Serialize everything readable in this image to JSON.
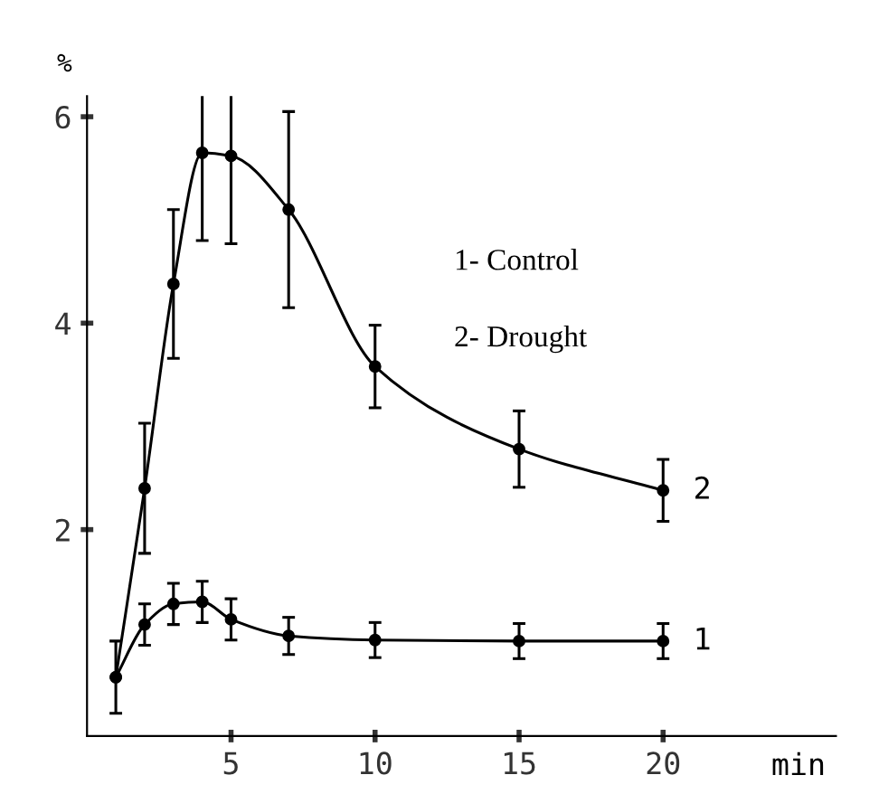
{
  "chart_data": {
    "type": "line",
    "xlabel": "min",
    "ylabel": "%",
    "x": [
      1,
      2,
      3,
      4,
      5,
      7,
      10,
      15,
      20
    ],
    "series": [
      {
        "name": "1",
        "color": "#000000",
        "values": [
          0.57,
          1.08,
          1.28,
          1.3,
          1.13,
          0.97,
          0.93,
          0.92,
          0.92
        ],
        "errors": [
          0.35,
          0.2,
          0.2,
          0.2,
          0.2,
          0.18,
          0.17,
          0.17,
          0.17
        ]
      },
      {
        "name": "2",
        "color": "#000000",
        "values": [
          0.57,
          2.4,
          4.38,
          5.65,
          5.62,
          5.1,
          3.58,
          2.78,
          2.38
        ],
        "errors": [
          null,
          0.63,
          0.72,
          0.85,
          0.85,
          0.95,
          0.4,
          0.37,
          0.3
        ]
      }
    ],
    "xlim": [
      0,
      26
    ],
    "ylim": [
      0,
      6.2
    ],
    "xticks": [
      5,
      10,
      15,
      20
    ],
    "yticks": [
      2,
      4,
      6
    ],
    "marker": "circle",
    "line_style": "solid",
    "grid": false,
    "legend": false,
    "annotations": [
      "1- Control",
      "2- Drought"
    ]
  }
}
